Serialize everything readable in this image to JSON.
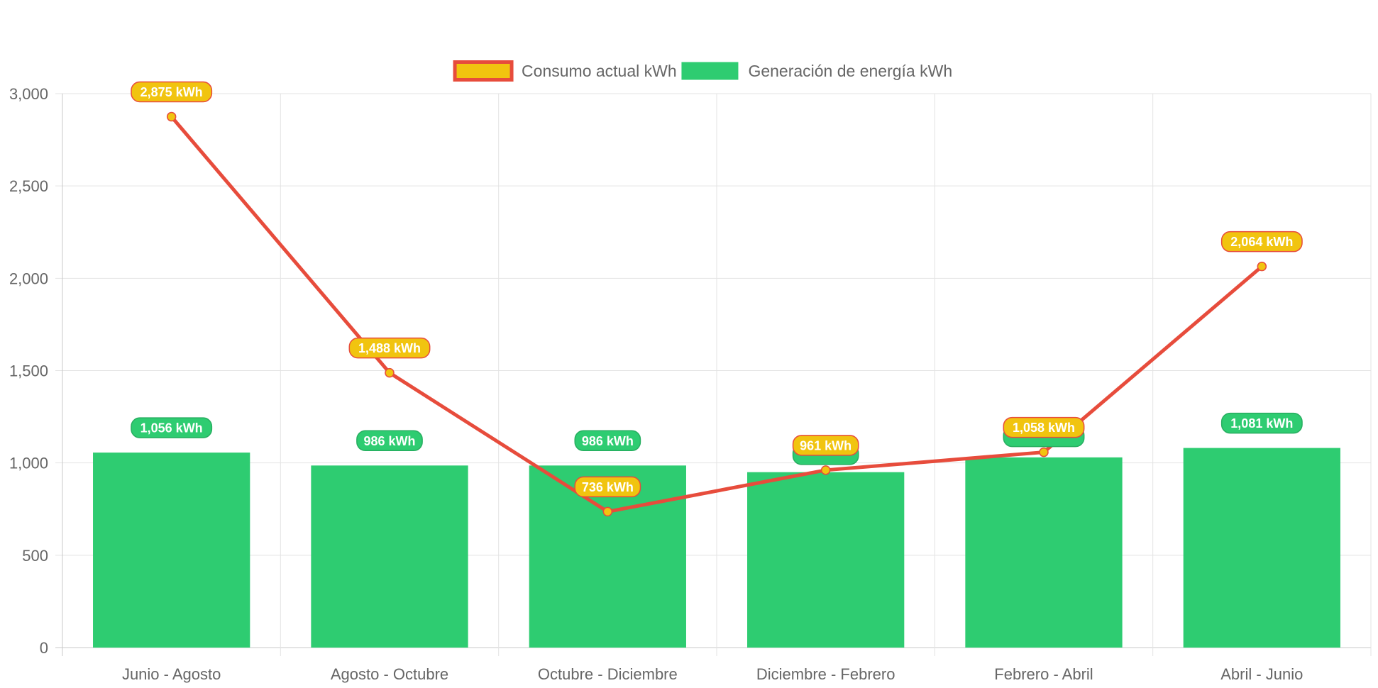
{
  "chart_data": {
    "type": "bar",
    "categories": [
      "Junio - Agosto",
      "Agosto - Octubre",
      "Octubre - Diciembre",
      "Diciembre - Febrero",
      "Febrero - Abril",
      "Abril - Junio"
    ],
    "series": [
      {
        "name": "Consumo actual kWh",
        "type": "line",
        "values": [
          2875,
          1488,
          736,
          961,
          1058,
          2064
        ],
        "labels": [
          "2,875 kWh",
          "1,488 kWh",
          "736 kWh",
          "961 kWh",
          "1,058 kWh",
          "2,064 kWh"
        ],
        "color": "#e74c3c",
        "fill": "#f1c40f"
      },
      {
        "name": "Generación de energía kWh",
        "type": "bar",
        "values": [
          1056,
          986,
          986,
          950,
          1030,
          1081
        ],
        "labels": [
          "1,056 kWh",
          "986 kWh",
          "986 kWh",
          "",
          "",
          "1,081 kWh"
        ],
        "color": "#2ecc71"
      }
    ],
    "ylim": [
      0,
      3000
    ],
    "yticks": [
      0,
      500,
      1000,
      1500,
      2000,
      2500,
      3000
    ],
    "ytick_labels": [
      "0",
      "500",
      "1,000",
      "1,500",
      "2,000",
      "2,500",
      "3,000"
    ],
    "grid": true,
    "legend_position": "top",
    "title": "",
    "xlabel": "",
    "ylabel": ""
  }
}
